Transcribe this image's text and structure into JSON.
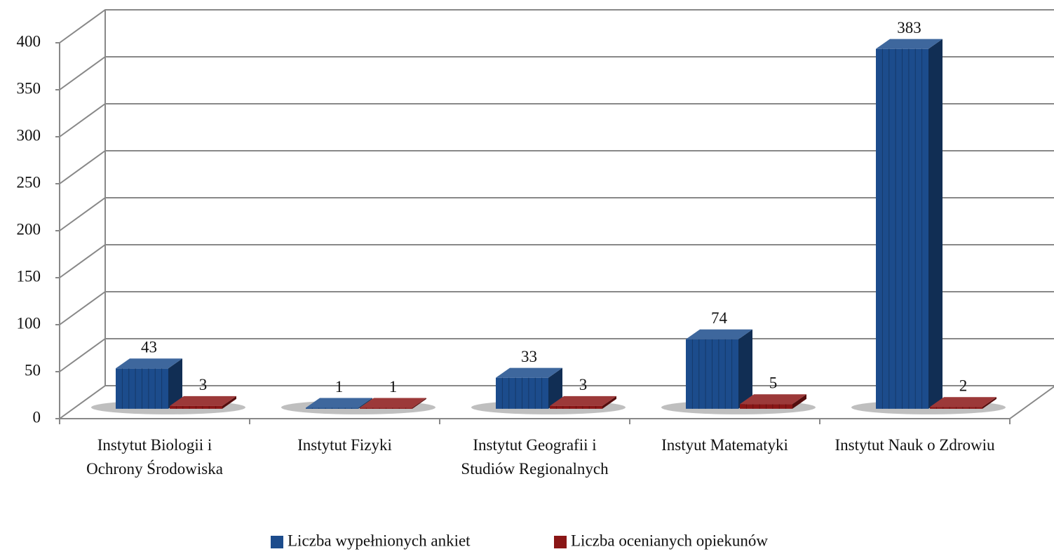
{
  "chart_data": {
    "type": "bar3d",
    "categories": [
      "Instytut Biologii i Ochrony Środowiska",
      "Instytut Fizyki",
      "Instytut Geografii i Studiów Regionalnych",
      "Instyut Matematyki",
      "Instytut Nauk o Zdrowiu"
    ],
    "series": [
      {
        "name": "Liczba wypełnionych ankiet",
        "color": "#1c4c8c",
        "values": [
          43,
          1,
          33,
          74,
          383
        ]
      },
      {
        "name": "Liczba ocenianych opiekunów",
        "color": "#8a1616",
        "values": [
          3,
          1,
          3,
          5,
          2
        ]
      }
    ],
    "ylim": [
      0,
      400
    ],
    "yticks": [
      0,
      50,
      100,
      150,
      200,
      250,
      300,
      350,
      400
    ],
    "grid": true
  }
}
